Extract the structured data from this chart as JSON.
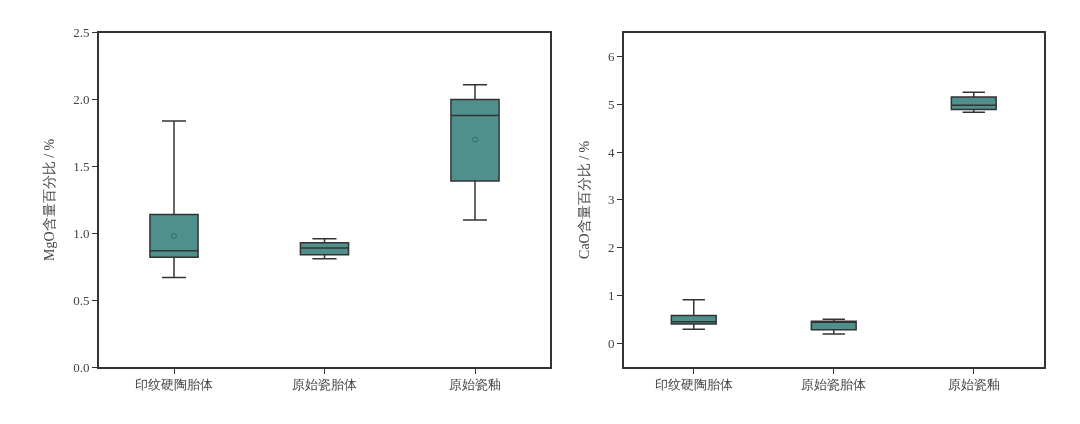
{
  "chart_data": [
    {
      "type": "box",
      "ylabel": "MgO含量百分比 / %",
      "categories": [
        "印纹硬陶胎体",
        "原始瓷胎体",
        "原始瓷釉"
      ],
      "color": "#4f8f8c",
      "ylim": [
        0,
        2.5
      ],
      "yticks": [
        {
          "value": 0,
          "label": "0.0"
        },
        {
          "value": 0.5,
          "label": "0.5"
        },
        {
          "value": 1,
          "label": "1.0"
        },
        {
          "value": 1.5,
          "label": "1.5"
        },
        {
          "value": 2,
          "label": "2.0"
        },
        {
          "value": 2.5,
          "label": "2.5"
        }
      ],
      "legend": false,
      "boxes": [
        {
          "low": 0.67,
          "q1": 0.82,
          "median": 0.87,
          "q3": 1.14,
          "high": 1.84,
          "mean": 0.98
        },
        {
          "low": 0.81,
          "q1": 0.84,
          "median": 0.89,
          "q3": 0.93,
          "high": 0.96
        },
        {
          "low": 1.1,
          "q1": 1.39,
          "median": 1.88,
          "q3": 2.0,
          "high": 2.11,
          "mean": 1.7
        }
      ]
    },
    {
      "type": "box",
      "ylabel": "CaO含量百分比 / %",
      "categories": [
        "印纹硬陶胎体",
        "原始瓷胎体",
        "原始瓷釉"
      ],
      "color": "#4f8f8c",
      "ylim": [
        -0.5,
        6.5
      ],
      "yticks": [
        0,
        1,
        2,
        3,
        4,
        5,
        6
      ],
      "legend": false,
      "boxes": [
        {
          "low": 0.29,
          "q1": 0.4,
          "median": 0.45,
          "q3": 0.58,
          "high": 0.91
        },
        {
          "low": 0.19,
          "q1": 0.28,
          "median": 0.45,
          "q3": 0.46,
          "high": 0.5
        },
        {
          "low": 4.83,
          "q1": 4.89,
          "median": 4.98,
          "q3": 5.15,
          "high": 5.25
        }
      ]
    }
  ]
}
